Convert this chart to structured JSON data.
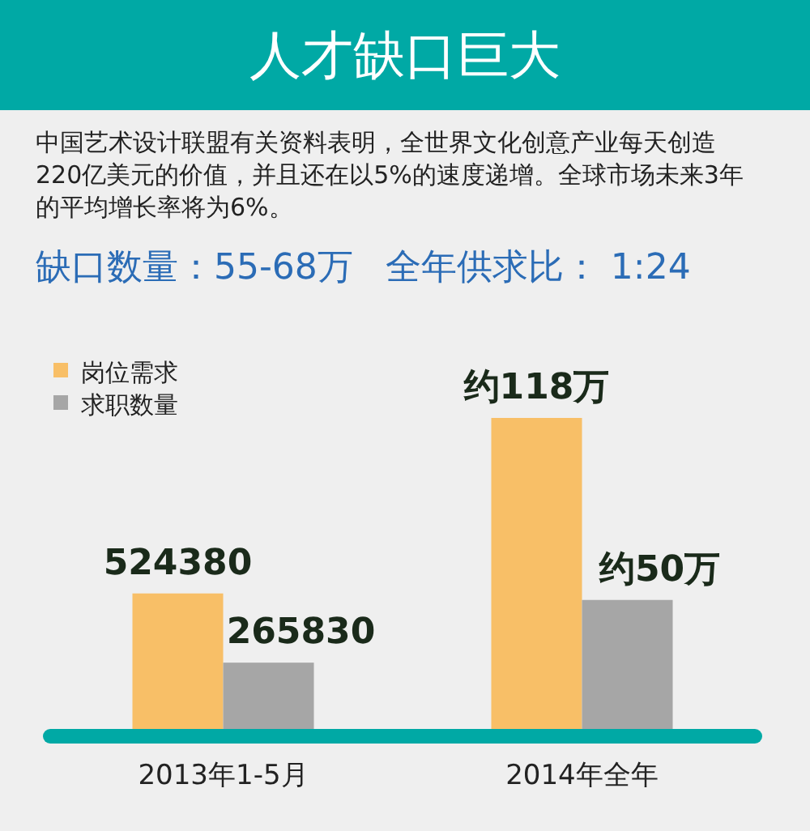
{
  "chart_data": {
    "type": "bar",
    "title": "人才缺口巨大",
    "subtitle": "中国艺术设计联盟有关资料表明，全世界文化创意产业每天创造220亿美元的价值，并且还在以5%的速度递增。全球市场未来3年的平均增长率将为6%。",
    "annotations": [
      "缺口数量：55-68万",
      "全年供求比： 1:24"
    ],
    "categories": [
      "2013年1-5月",
      "2014年全年"
    ],
    "series": [
      {
        "name": "岗位需求",
        "color": "#f8bf67",
        "values": [
          524380,
          1180000
        ],
        "value_labels": [
          "524380",
          "约118万"
        ]
      },
      {
        "name": "求职数量",
        "color": "#a6a6a6",
        "values": [
          265830,
          500000
        ],
        "value_labels": [
          "265830",
          "约50万"
        ]
      }
    ],
    "legend": "top left"
  }
}
